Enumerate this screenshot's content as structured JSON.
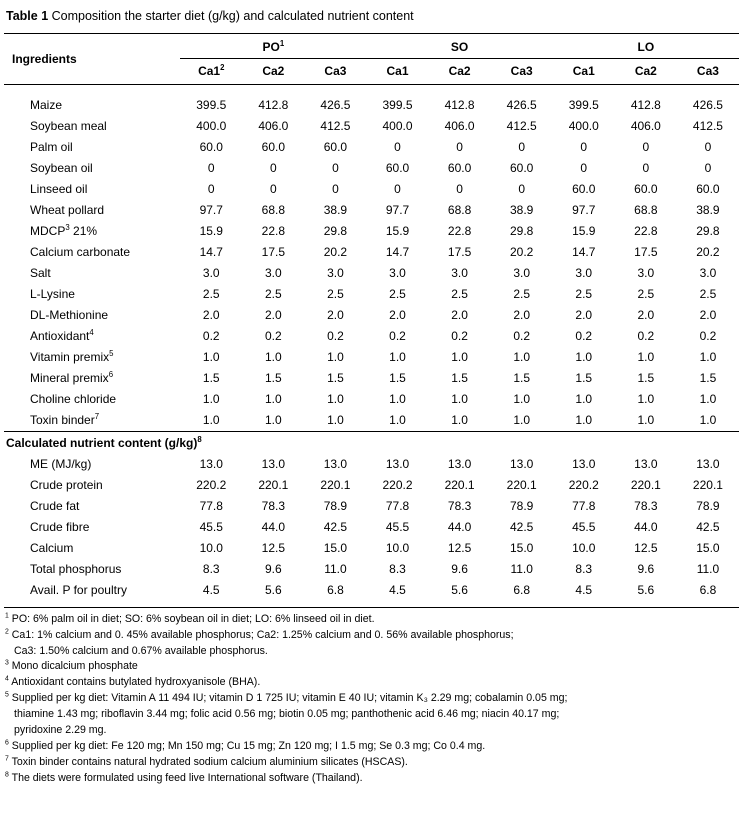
{
  "title": {
    "label": "Table 1",
    "caption": "Composition the starter diet (g/kg) and calculated nutrient content"
  },
  "table": {
    "ingredients_header": "Ingredients",
    "groups": [
      {
        "label": "PO",
        "sup": "1"
      },
      {
        "label": "SO"
      },
      {
        "label": "LO"
      }
    ],
    "subheaders": [
      {
        "label": "Ca1",
        "sup": "2"
      },
      {
        "label": "Ca2"
      },
      {
        "label": "Ca3"
      },
      {
        "label": "Ca1"
      },
      {
        "label": "Ca2"
      },
      {
        "label": "Ca3"
      },
      {
        "label": "Ca1"
      },
      {
        "label": "Ca2"
      },
      {
        "label": "Ca3"
      }
    ],
    "ingredient_rows": [
      {
        "label": "Maize",
        "values": [
          "399.5",
          "412.8",
          "426.5",
          "399.5",
          "412.8",
          "426.5",
          "399.5",
          "412.8",
          "426.5"
        ]
      },
      {
        "label": "Soybean meal",
        "values": [
          "400.0",
          "406.0",
          "412.5",
          "400.0",
          "406.0",
          "412.5",
          "400.0",
          "406.0",
          "412.5"
        ]
      },
      {
        "label": "Palm oil",
        "values": [
          "60.0",
          "60.0",
          "60.0",
          "0",
          "0",
          "0",
          "0",
          "0",
          "0"
        ]
      },
      {
        "label": "Soybean oil",
        "values": [
          "0",
          "0",
          "0",
          "60.0",
          "60.0",
          "60.0",
          "0",
          "0",
          "0"
        ]
      },
      {
        "label": "Linseed oil",
        "values": [
          "0",
          "0",
          "0",
          "0",
          "0",
          "0",
          "60.0",
          "60.0",
          "60.0"
        ]
      },
      {
        "label": "Wheat pollard",
        "values": [
          "97.7",
          "68.8",
          "38.9",
          "97.7",
          "68.8",
          "38.9",
          "97.7",
          "68.8",
          "38.9"
        ]
      },
      {
        "label": "MDCP",
        "sup": "3",
        "after": " 21%",
        "values": [
          "15.9",
          "22.8",
          "29.8",
          "15.9",
          "22.8",
          "29.8",
          "15.9",
          "22.8",
          "29.8"
        ]
      },
      {
        "label": "Calcium carbonate",
        "values": [
          "14.7",
          "17.5",
          "20.2",
          "14.7",
          "17.5",
          "20.2",
          "14.7",
          "17.5",
          "20.2"
        ]
      },
      {
        "label": "Salt",
        "values": [
          "3.0",
          "3.0",
          "3.0",
          "3.0",
          "3.0",
          "3.0",
          "3.0",
          "3.0",
          "3.0"
        ]
      },
      {
        "label": "L-Lysine",
        "values": [
          "2.5",
          "2.5",
          "2.5",
          "2.5",
          "2.5",
          "2.5",
          "2.5",
          "2.5",
          "2.5"
        ]
      },
      {
        "label": "DL-Methionine",
        "values": [
          "2.0",
          "2.0",
          "2.0",
          "2.0",
          "2.0",
          "2.0",
          "2.0",
          "2.0",
          "2.0"
        ]
      },
      {
        "label": "Antioxidant",
        "sup": "4",
        "values": [
          "0.2",
          "0.2",
          "0.2",
          "0.2",
          "0.2",
          "0.2",
          "0.2",
          "0.2",
          "0.2"
        ]
      },
      {
        "label": "Vitamin premix",
        "sup": "5",
        "values": [
          "1.0",
          "1.0",
          "1.0",
          "1.0",
          "1.0",
          "1.0",
          "1.0",
          "1.0",
          "1.0"
        ]
      },
      {
        "label": "Mineral premix",
        "sup": "6",
        "values": [
          "1.5",
          "1.5",
          "1.5",
          "1.5",
          "1.5",
          "1.5",
          "1.5",
          "1.5",
          "1.5"
        ]
      },
      {
        "label": "Choline chloride",
        "values": [
          "1.0",
          "1.0",
          "1.0",
          "1.0",
          "1.0",
          "1.0",
          "1.0",
          "1.0",
          "1.0"
        ]
      },
      {
        "label": "Toxin binder",
        "sup": "7",
        "values": [
          "1.0",
          "1.0",
          "1.0",
          "1.0",
          "1.0",
          "1.0",
          "1.0",
          "1.0",
          "1.0"
        ]
      }
    ],
    "section_header": {
      "label": "Calculated nutrient content (g/kg)",
      "sup": "8"
    },
    "nutrient_rows": [
      {
        "label": "ME (MJ/kg)",
        "values": [
          "13.0",
          "13.0",
          "13.0",
          "13.0",
          "13.0",
          "13.0",
          "13.0",
          "13.0",
          "13.0"
        ]
      },
      {
        "label": "Crude protein",
        "values": [
          "220.2",
          "220.1",
          "220.1",
          "220.2",
          "220.1",
          "220.1",
          "220.2",
          "220.1",
          "220.1"
        ]
      },
      {
        "label": "Crude fat",
        "values": [
          "77.8",
          "78.3",
          "78.9",
          "77.8",
          "78.3",
          "78.9",
          "77.8",
          "78.3",
          "78.9"
        ]
      },
      {
        "label": "Crude fibre",
        "values": [
          "45.5",
          "44.0",
          "42.5",
          "45.5",
          "44.0",
          "42.5",
          "45.5",
          "44.0",
          "42.5"
        ]
      },
      {
        "label": "Calcium",
        "values": [
          "10.0",
          "12.5",
          "15.0",
          "10.0",
          "12.5",
          "15.0",
          "10.0",
          "12.5",
          "15.0"
        ]
      },
      {
        "label": "Total phosphorus",
        "values": [
          "8.3",
          "9.6",
          "11.0",
          "8.3",
          "9.6",
          "11.0",
          "8.3",
          "9.6",
          "11.0"
        ]
      },
      {
        "label": "Avail. P for poultry",
        "values": [
          "4.5",
          "5.6",
          "6.8",
          "4.5",
          "5.6",
          "6.8",
          "4.5",
          "5.6",
          "6.8"
        ]
      }
    ]
  },
  "footnotes": [
    {
      "sup": "1",
      "lines": [
        "PO: 6% palm oil in diet; SO: 6% soybean oil in diet; LO: 6% linseed oil in diet."
      ]
    },
    {
      "sup": "2",
      "lines": [
        "Ca1: 1% calcium and 0. 45% available phosphorus; Ca2: 1.25% calcium and 0. 56% available phosphorus;",
        "Ca3: 1.50% calcium and 0.67% available phosphorus."
      ]
    },
    {
      "sup": "3",
      "lines": [
        "Mono dicalcium phosphate"
      ]
    },
    {
      "sup": "4",
      "lines": [
        "Antioxidant contains butylated hydroxyanisole (BHA)."
      ]
    },
    {
      "sup": "5",
      "lines": [
        "Supplied per kg diet: Vitamin A 11 494 IU; vitamin D 1 725 IU; vitamin E 40 IU; vitamin K₃ 2.29 mg; cobalamin 0.05 mg;",
        "thiamine 1.43 mg; riboflavin 3.44 mg; folic acid 0.56 mg; biotin 0.05 mg; panthothenic acid 6.46 mg; niacin 40.17 mg;",
        "pyridoxine 2.29 mg."
      ]
    },
    {
      "sup": "6",
      "lines": [
        "Supplied per kg diet: Fe 120 mg; Mn 150 mg; Cu 15 mg; Zn 120 mg; I 1.5 mg; Se 0.3 mg; Co 0.4 mg."
      ]
    },
    {
      "sup": "7",
      "lines": [
        "Toxin binder contains natural hydrated sodium calcium aluminium silicates (HSCAS)."
      ]
    },
    {
      "sup": "8",
      "lines": [
        "The diets were formulated using feed live International software (Thailand)."
      ]
    }
  ]
}
